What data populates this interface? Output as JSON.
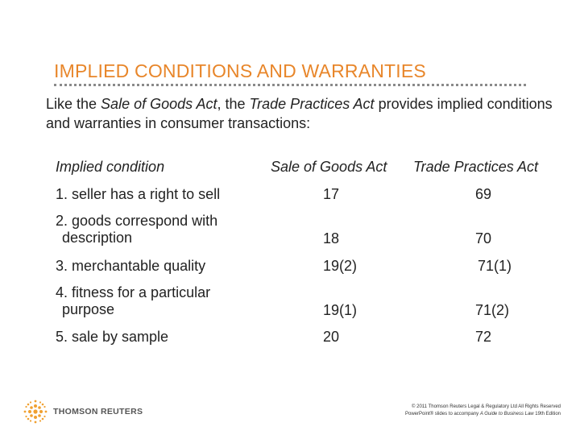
{
  "title": "IMPLIED CONDITIONS AND WARRANTIES",
  "intro": {
    "p1": "Like the ",
    "act1": "Sale of Goods Act",
    "p2": ", the ",
    "act2": "Trade Practices Act",
    "p3": " provides implied conditions and warranties in consumer transactions:"
  },
  "table": {
    "headers": {
      "condition": "Implied condition",
      "sga": "Sale of Goods Act",
      "tpa": "Trade Practices Act"
    },
    "rows": [
      {
        "line1": "1. seller has a right to sell",
        "line2": "",
        "sga": "17",
        "tpa": "69"
      },
      {
        "line1": "2. goods correspond with",
        "line2": "description",
        "sga": "18",
        "tpa": "70"
      },
      {
        "line1": "3. merchantable quality",
        "line2": "",
        "sga": "19(2)",
        "tpa": "71(1)"
      },
      {
        "line1": "4. fitness for a particular",
        "line2": "purpose",
        "sga": "19(1)",
        "tpa": "71(2)"
      },
      {
        "line1": "5. sale by sample",
        "line2": "",
        "sga": "20",
        "tpa": "72"
      }
    ]
  },
  "logo": {
    "name": "THOMSON REUTERS",
    "icon": "thomson-reuters-dot-globe-icon",
    "color": "#f0a030"
  },
  "footer": {
    "line1": "© 2011 Thomson Reuters Legal & Regulatory Ltd All Rights Reserved",
    "line2_a": "PowerPoint® slides to accompany ",
    "line2_b": "A Guide to Business Law",
    "line2_c": " 19th Edition"
  },
  "colors": {
    "title": "#e8862a",
    "rule": "#8a8a8a",
    "text": "#222222"
  }
}
